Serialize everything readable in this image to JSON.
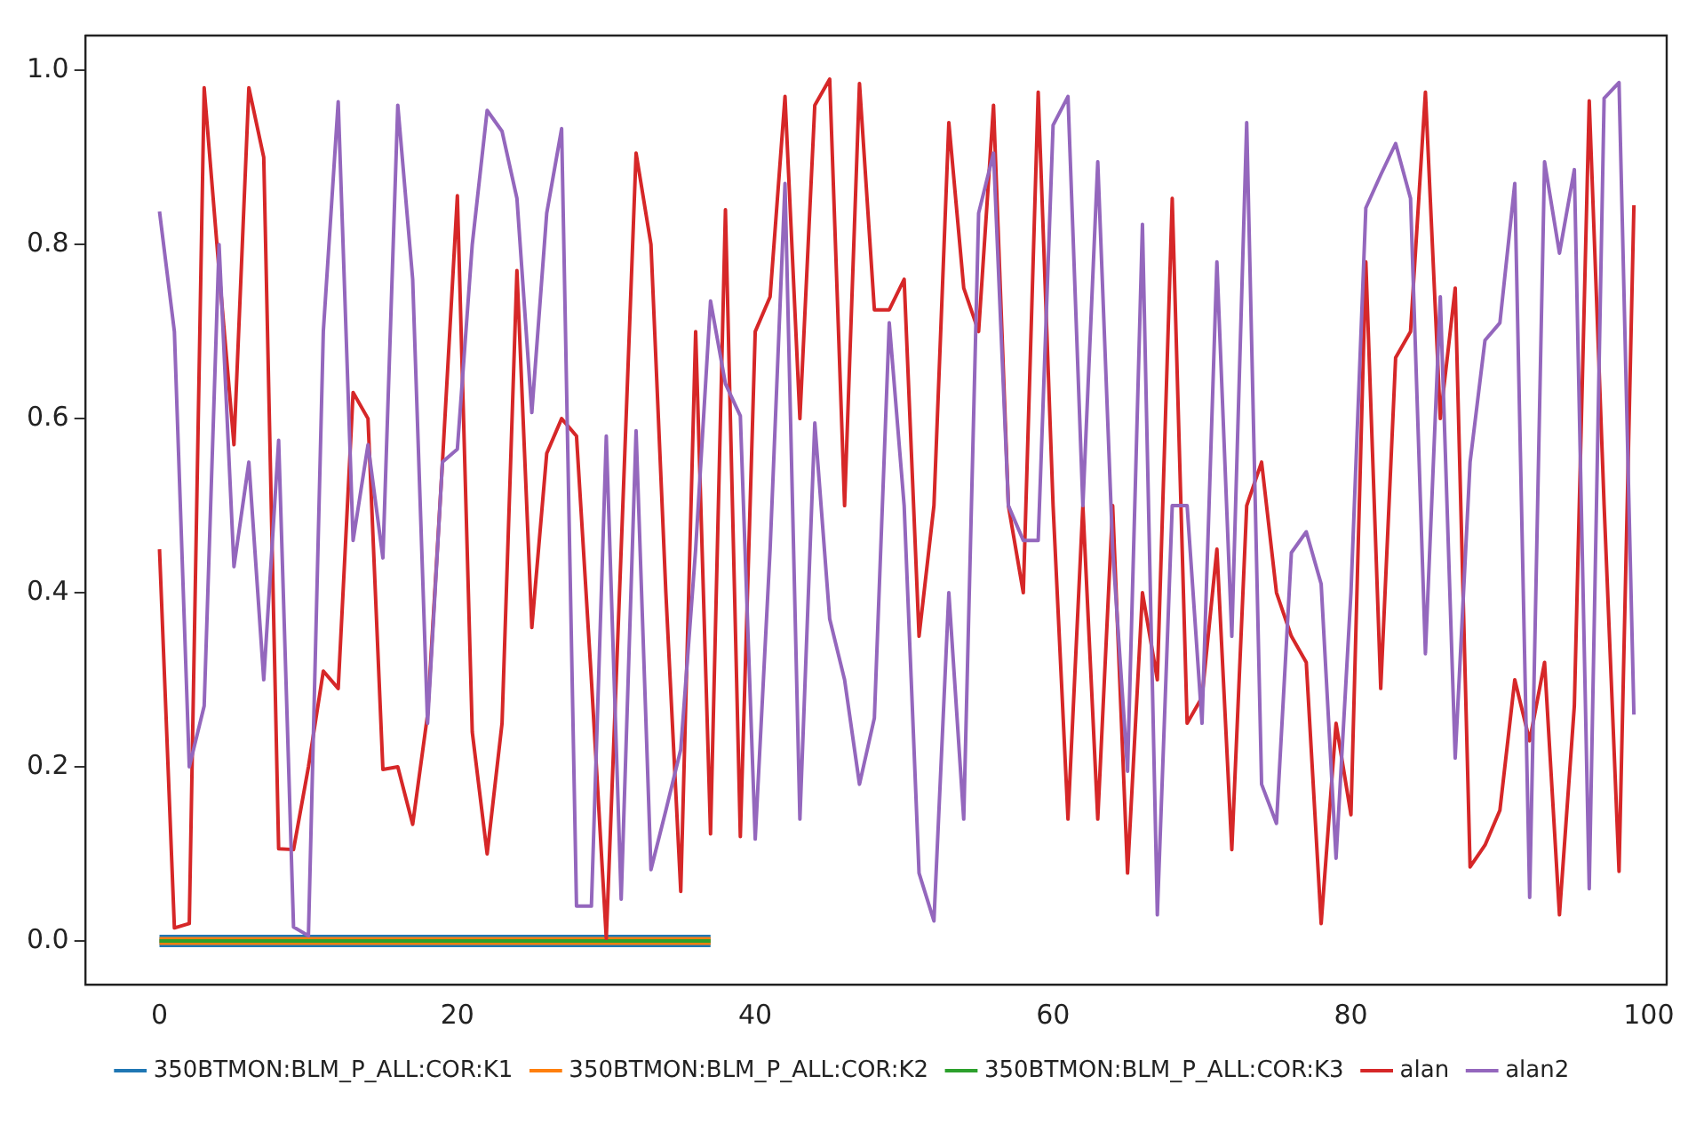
{
  "chart_data": {
    "type": "line",
    "x": [
      0,
      1,
      2,
      3,
      4,
      5,
      6,
      7,
      8,
      9,
      10,
      11,
      12,
      13,
      14,
      15,
      16,
      17,
      18,
      19,
      20,
      21,
      22,
      23,
      24,
      25,
      26,
      27,
      28,
      29,
      30,
      31,
      32,
      33,
      34,
      35,
      36,
      37,
      38,
      39,
      40,
      41,
      42,
      43,
      44,
      45,
      46,
      47,
      48,
      49,
      50,
      51,
      52,
      53,
      54,
      55,
      56,
      57,
      58,
      59,
      60,
      61,
      62,
      63,
      64,
      65,
      66,
      67,
      68,
      69,
      70,
      71,
      72,
      73,
      74,
      75,
      76,
      77,
      78,
      79,
      80,
      81,
      82,
      83,
      84,
      85,
      86,
      87,
      88,
      89,
      90,
      91,
      92,
      93,
      94,
      95,
      96,
      97,
      98,
      99
    ],
    "series": [
      {
        "name": "350BTMON:BLM_P_ALL:COR:K1",
        "color": "#1f77b4",
        "values": [
          0,
          0,
          0,
          0,
          0,
          0,
          0,
          0,
          0,
          0,
          0,
          0,
          0,
          0,
          0,
          0,
          0,
          0,
          0,
          0,
          0,
          0,
          0,
          0,
          0,
          0,
          0,
          0,
          0,
          0,
          0,
          0,
          0,
          0,
          0,
          0,
          0,
          0,
          null,
          null,
          null,
          null,
          null,
          null,
          null,
          null,
          null,
          null,
          null,
          null,
          null,
          null,
          null,
          null,
          null,
          null,
          null,
          null,
          null,
          null,
          null,
          null,
          null,
          null,
          null,
          null,
          null,
          null,
          null,
          null,
          null,
          null,
          null,
          null,
          null,
          null,
          null,
          null,
          null,
          null,
          null,
          null,
          null,
          null,
          null,
          null,
          null,
          null,
          null,
          null,
          null,
          null,
          null,
          null,
          null,
          null,
          null,
          null,
          null,
          null
        ]
      },
      {
        "name": "350BTMON:BLM_P_ALL:COR:K2",
        "color": "#ff7f0e",
        "values": [
          0,
          0,
          0,
          0,
          0,
          0,
          0,
          0,
          0,
          0,
          0,
          0,
          0,
          0,
          0,
          0,
          0,
          0,
          0,
          0,
          0,
          0,
          0,
          0,
          0,
          0,
          0,
          0,
          0,
          0,
          0,
          0,
          0,
          0,
          0,
          0,
          0,
          0,
          null,
          null,
          null,
          null,
          null,
          null,
          null,
          null,
          null,
          null,
          null,
          null,
          null,
          null,
          null,
          null,
          null,
          null,
          null,
          null,
          null,
          null,
          null,
          null,
          null,
          null,
          null,
          null,
          null,
          null,
          null,
          null,
          null,
          null,
          null,
          null,
          null,
          null,
          null,
          null,
          null,
          null,
          null,
          null,
          null,
          null,
          null,
          null,
          null,
          null,
          null,
          null,
          null,
          null,
          null,
          null,
          null,
          null,
          null,
          null,
          null,
          null
        ]
      },
      {
        "name": "350BTMON:BLM_P_ALL:COR:K3",
        "color": "#2ca02c",
        "values": [
          0,
          0,
          0,
          0,
          0,
          0,
          0,
          0,
          0,
          0,
          0,
          0,
          0,
          0,
          0,
          0,
          0,
          0,
          0,
          0,
          0,
          0,
          0,
          0,
          0,
          0,
          0,
          0,
          0,
          0,
          0,
          0,
          0,
          0,
          0,
          0,
          0,
          0,
          null,
          null,
          null,
          null,
          null,
          null,
          null,
          null,
          null,
          null,
          null,
          null,
          null,
          null,
          null,
          null,
          null,
          null,
          null,
          null,
          null,
          null,
          null,
          null,
          null,
          null,
          null,
          null,
          null,
          null,
          null,
          null,
          null,
          null,
          null,
          null,
          null,
          null,
          null,
          null,
          null,
          null,
          null,
          null,
          null,
          null,
          null,
          null,
          null,
          null,
          null,
          null,
          null,
          null,
          null,
          null,
          null,
          null,
          null,
          null,
          null,
          null
        ]
      },
      {
        "name": "alan",
        "color": "#d62728",
        "values": [
          0.45,
          0.015,
          0.02,
          0.98,
          0.77,
          0.57,
          0.98,
          0.9,
          0.106,
          0.105,
          0.2,
          0.31,
          0.29,
          0.63,
          0.6,
          0.197,
          0.2,
          0.134,
          0.26,
          0.55,
          0.856,
          0.24,
          0.1,
          0.25,
          0.77,
          0.36,
          0.56,
          0.6,
          0.58,
          0.3,
          0.003,
          0.45,
          0.905,
          0.8,
          0.4,
          0.057,
          0.7,
          0.123,
          0.84,
          0.12,
          0.7,
          0.74,
          0.97,
          0.6,
          0.96,
          0.99,
          0.5,
          0.985,
          0.725,
          0.725,
          0.76,
          0.35,
          0.5,
          0.94,
          0.75,
          0.7,
          0.96,
          0.5,
          0.4,
          0.975,
          0.5,
          0.14,
          0.5,
          0.14,
          0.5,
          0.078,
          0.4,
          0.3,
          0.853,
          0.25,
          0.28,
          0.45,
          0.105,
          0.5,
          0.55,
          0.4,
          0.35,
          0.32,
          0.02,
          0.25,
          0.145,
          0.78,
          0.29,
          0.67,
          0.7,
          0.975,
          0.6,
          0.75,
          0.085,
          0.11,
          0.15,
          0.3,
          0.23,
          0.32,
          0.03,
          0.27,
          0.965,
          0.5,
          0.08,
          0.845
        ]
      },
      {
        "name": "alan2",
        "color": "#9467bd",
        "values": [
          0.838,
          0.7,
          0.2,
          0.27,
          0.8,
          0.43,
          0.55,
          0.3,
          0.575,
          0.016,
          0.006,
          0.7,
          0.964,
          0.46,
          0.57,
          0.44,
          0.96,
          0.76,
          0.25,
          0.55,
          0.565,
          0.8,
          0.954,
          0.93,
          0.853,
          0.607,
          0.836,
          0.933,
          0.04,
          0.04,
          0.58,
          0.048,
          0.586,
          0.082,
          0.15,
          0.22,
          0.45,
          0.735,
          0.64,
          0.603,
          0.117,
          0.45,
          0.87,
          0.14,
          0.595,
          0.37,
          0.3,
          0.18,
          0.256,
          0.71,
          0.5,
          0.078,
          0.023,
          0.4,
          0.14,
          0.836,
          0.905,
          0.5,
          0.46,
          0.46,
          0.937,
          0.97,
          0.5,
          0.895,
          0.45,
          0.195,
          0.823,
          0.03,
          0.5,
          0.5,
          0.25,
          0.78,
          0.35,
          0.94,
          0.18,
          0.135,
          0.446,
          0.47,
          0.41,
          0.095,
          0.4,
          0.842,
          0.88,
          0.916,
          0.853,
          0.33,
          0.74,
          0.21,
          0.55,
          0.69,
          0.71,
          0.87,
          0.05,
          0.895,
          0.79,
          0.886,
          0.06,
          0.968,
          0.986,
          0.26
        ]
      }
    ],
    "xlim": [
      -5,
      101.2
    ],
    "xticks": [
      0,
      20,
      40,
      60,
      80,
      100
    ],
    "ylim": [
      -0.05,
      1.04
    ],
    "yticks": [
      {
        "value": 0,
        "label": "0.0"
      },
      {
        "value": 0.2,
        "label": "0.2"
      },
      {
        "value": 0.4,
        "label": "0.4"
      },
      {
        "value": 0.6,
        "label": "0.6"
      },
      {
        "value": 0.8,
        "label": "0.8"
      },
      {
        "value": 1,
        "label": "1.0"
      }
    ],
    "grid": false,
    "legend": "bottom",
    "marker": "none",
    "line_style": "solid"
  }
}
